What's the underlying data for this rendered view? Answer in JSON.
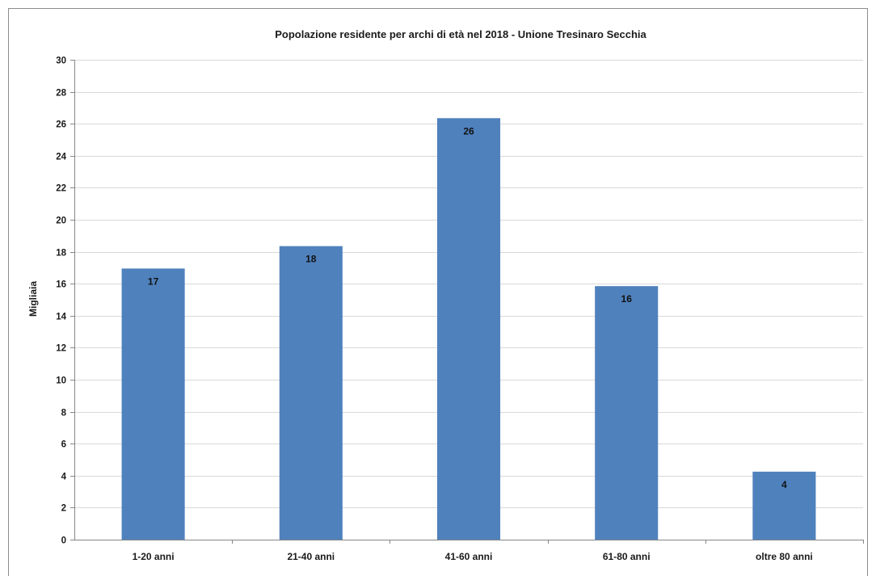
{
  "chart_data": {
    "type": "bar",
    "title": "Popolazione residente per archi di età nel 2018 - Unione Tresinaro Secchia",
    "xlabel": "",
    "ylabel": "Migliaia",
    "categories": [
      "1-20 anni",
      "21-40 anni",
      "41-60 anni",
      "61-80 anni",
      "oltre 80 anni"
    ],
    "values": [
      16.95,
      18.35,
      26.35,
      15.85,
      4.25
    ],
    "data_labels": [
      "17",
      "18",
      "26",
      "16",
      "4"
    ],
    "ylim": [
      0,
      30
    ],
    "yticks": [
      0,
      2,
      4,
      6,
      8,
      10,
      12,
      14,
      16,
      18,
      20,
      22,
      24,
      26,
      28,
      30
    ],
    "grid": true,
    "legend": "none",
    "bar_color": "#4f81bd",
    "grid_color": "#d9d9d9",
    "axis_color": "#868686"
  }
}
